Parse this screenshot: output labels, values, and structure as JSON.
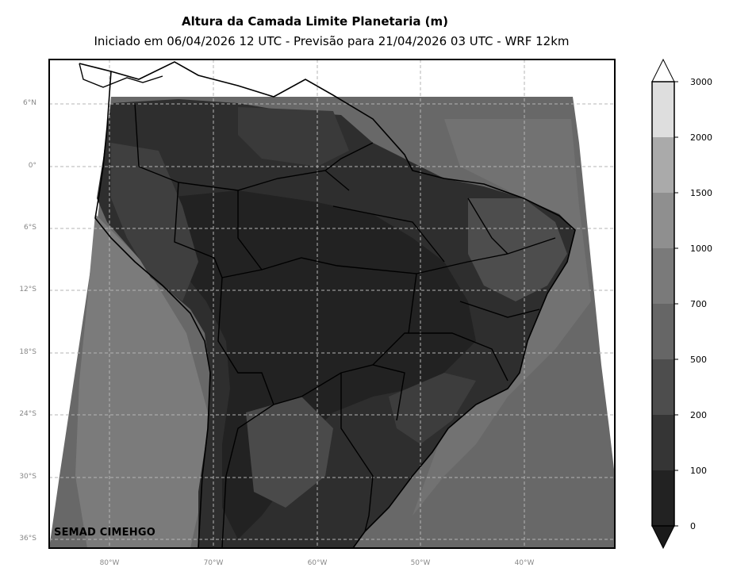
{
  "title": "Altura da Camada Limite Planetaria (m)",
  "subtitle": "Iniciado em 06/04/2026 12 UTC - Previsão para 21/04/2026 03 UTC - WRF 12km",
  "credit": "SEMAD CIMEHGO",
  "latitude_labels": [
    "6°N",
    "0°",
    "6°S",
    "12°S",
    "18°S",
    "24°S",
    "30°S",
    "36°S"
  ],
  "longitude_labels": [
    "80°W",
    "70°W",
    "60°W",
    "50°W",
    "40°W"
  ],
  "colorbar": {
    "levels": [
      "0",
      "100",
      "200",
      "500",
      "700",
      "1000",
      "1500",
      "2000",
      "3000"
    ],
    "colors": [
      "#1a1a1a",
      "#222222",
      "#353535",
      "#4d4d4d",
      "#666666",
      "#7a7a7a",
      "#8f8f8f",
      "#aaaaaa",
      "#dedede",
      "#ffffff"
    ]
  },
  "colors": {
    "ocean": "#686868",
    "continent": "#2e2e2e",
    "borders": "#000000",
    "grid": "#b4b4b4"
  }
}
